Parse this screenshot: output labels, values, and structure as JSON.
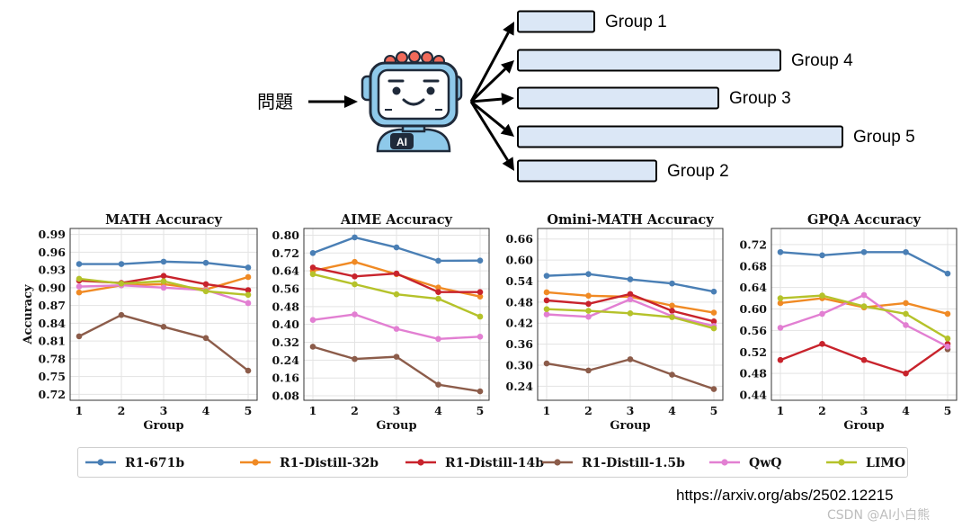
{
  "top": {
    "input_label": "問題",
    "robot_badge": "AI",
    "groups": [
      {
        "label": "Group 1",
        "length": 1
      },
      {
        "label": "Group 4",
        "length": 4
      },
      {
        "label": "Group 3",
        "length": 3
      },
      {
        "label": "Group 5",
        "length": 5
      },
      {
        "label": "Group 2",
        "length": 2
      }
    ],
    "colors": {
      "bar_fill": "#dbe7f6",
      "robot_face": "#8ec9ea",
      "robot_dark": "#1f2a3a",
      "robot_ear": "#f06a5a"
    }
  },
  "chart_data": [
    {
      "type": "line",
      "title": "MATH Accuracy",
      "xlabel": "Group",
      "ylabel": "Accuracy",
      "x": [
        1,
        2,
        3,
        4,
        5
      ],
      "ylim": [
        0.71,
        1.0
      ],
      "yticks": [
        "0.72",
        "0.75",
        "0.78",
        "0.81",
        "0.84",
        "0.87",
        "0.90",
        "0.93",
        "0.96",
        "0.99"
      ],
      "grid": true,
      "series": [
        {
          "name": "R1-671b",
          "values": [
            0.94,
            0.94,
            0.944,
            0.942,
            0.934
          ]
        },
        {
          "name": "R1-Distill-32b",
          "values": [
            0.892,
            0.904,
            0.906,
            0.897,
            0.918
          ]
        },
        {
          "name": "R1-Distill-14b",
          "values": [
            0.912,
            0.908,
            0.92,
            0.906,
            0.896
          ]
        },
        {
          "name": "R1-Distill-1.5b",
          "values": [
            0.818,
            0.854,
            0.834,
            0.815,
            0.76
          ]
        },
        {
          "name": "QwQ",
          "values": [
            0.902,
            0.904,
            0.9,
            0.896,
            0.874
          ]
        },
        {
          "name": "LIMO",
          "values": [
            0.915,
            0.907,
            0.911,
            0.894,
            0.888
          ]
        }
      ]
    },
    {
      "type": "line",
      "title": "AIME Accuracy",
      "xlabel": "Group",
      "ylabel": "",
      "x": [
        1,
        2,
        3,
        4,
        5
      ],
      "ylim": [
        0.06,
        0.83
      ],
      "yticks": [
        "0.08",
        "0.16",
        "0.24",
        "0.32",
        "0.40",
        "0.48",
        "0.56",
        "0.64",
        "0.72",
        "0.80"
      ],
      "grid": true,
      "series": [
        {
          "name": "R1-671b",
          "values": [
            0.72,
            0.79,
            0.745,
            0.685,
            0.686
          ]
        },
        {
          "name": "R1-Distill-32b",
          "values": [
            0.64,
            0.68,
            0.625,
            0.565,
            0.525
          ]
        },
        {
          "name": "R1-Distill-14b",
          "values": [
            0.655,
            0.615,
            0.628,
            0.545,
            0.545
          ]
        },
        {
          "name": "R1-Distill-1.5b",
          "values": [
            0.3,
            0.245,
            0.255,
            0.13,
            0.1
          ]
        },
        {
          "name": "QwQ",
          "values": [
            0.42,
            0.445,
            0.38,
            0.335,
            0.345
          ]
        },
        {
          "name": "LIMO",
          "values": [
            0.625,
            0.58,
            0.535,
            0.515,
            0.435
          ]
        }
      ]
    },
    {
      "type": "line",
      "title": "Omini-MATH Accuracy",
      "xlabel": "Group",
      "ylabel": "",
      "x": [
        1,
        2,
        3,
        4,
        5
      ],
      "ylim": [
        0.2,
        0.69
      ],
      "yticks": [
        "0.24",
        "0.30",
        "0.36",
        "0.42",
        "0.48",
        "0.54",
        "0.60",
        "0.66"
      ],
      "grid": true,
      "series": [
        {
          "name": "R1-671b",
          "values": [
            0.555,
            0.56,
            0.545,
            0.533,
            0.51
          ]
        },
        {
          "name": "R1-Distill-32b",
          "values": [
            0.508,
            0.498,
            0.495,
            0.47,
            0.45
          ]
        },
        {
          "name": "R1-Distill-14b",
          "values": [
            0.485,
            0.475,
            0.503,
            0.455,
            0.425
          ]
        },
        {
          "name": "R1-Distill-1.5b",
          "values": [
            0.305,
            0.285,
            0.317,
            0.273,
            0.232
          ]
        },
        {
          "name": "QwQ",
          "values": [
            0.445,
            0.438,
            0.488,
            0.44,
            0.412
          ]
        },
        {
          "name": "LIMO",
          "values": [
            0.46,
            0.455,
            0.448,
            0.437,
            0.405
          ]
        }
      ]
    },
    {
      "type": "line",
      "title": "GPQA Accuracy",
      "xlabel": "Group",
      "ylabel": "",
      "x": [
        1,
        2,
        3,
        4,
        5
      ],
      "ylim": [
        0.43,
        0.75
      ],
      "yticks": [
        "0.44",
        "0.48",
        "0.52",
        "0.56",
        "0.60",
        "0.64",
        "0.68",
        "0.72"
      ],
      "grid": true,
      "series": [
        {
          "name": "R1-671b",
          "values": [
            0.706,
            0.7,
            0.706,
            0.706,
            0.666
          ]
        },
        {
          "name": "R1-Distill-32b",
          "values": [
            0.611,
            0.62,
            0.603,
            0.611,
            0.591
          ]
        },
        {
          "name": "R1-Distill-14b",
          "values": [
            0.505,
            0.535,
            0.505,
            0.48,
            0.535
          ]
        },
        {
          "name": "R1-Distill-1.5b",
          "values": [
            null,
            null,
            null,
            null,
            0.525
          ]
        },
        {
          "name": "QwQ",
          "values": [
            0.565,
            0.591,
            0.626,
            0.57,
            0.53
          ]
        },
        {
          "name": "LIMO",
          "values": [
            0.62,
            0.625,
            0.605,
            0.591,
            0.545
          ]
        }
      ]
    }
  ],
  "legend": {
    "placement": "bottom",
    "entries": [
      {
        "name": "R1-671b",
        "color": "#4a7fb5"
      },
      {
        "name": "R1-Distill-32b",
        "color": "#f08a24"
      },
      {
        "name": "R1-Distill-14b",
        "color": "#c8232c"
      },
      {
        "name": "R1-Distill-1.5b",
        "color": "#8c5c4a"
      },
      {
        "name": "QwQ",
        "color": "#e27fd2"
      },
      {
        "name": "LIMO",
        "color": "#b5c22a"
      }
    ]
  },
  "footer": {
    "source": "https://arxiv.org/abs/2502.12215",
    "watermark": "CSDN @AI小白熊"
  }
}
